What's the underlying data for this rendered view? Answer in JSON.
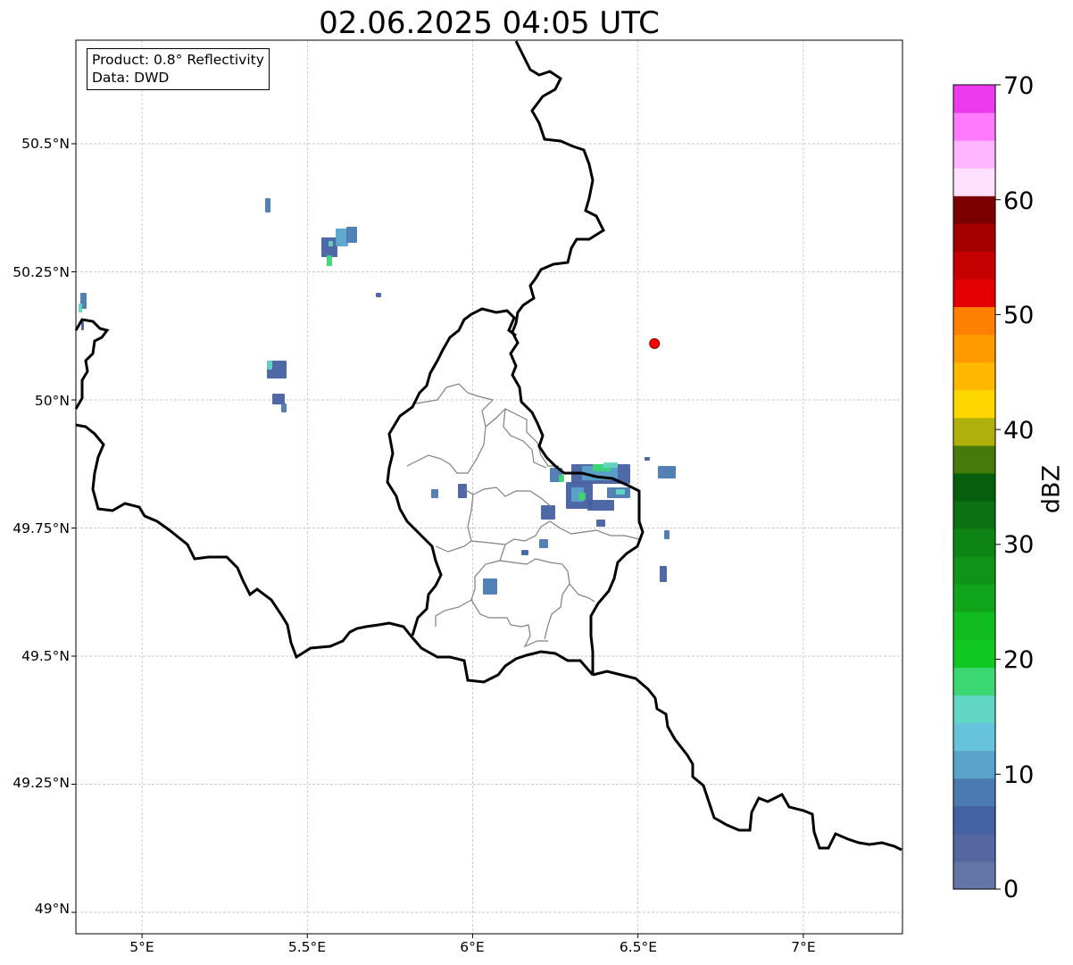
{
  "title": "02.06.2025 04:05 UTC",
  "info": {
    "product": "Product: 0.8° Reflectivity",
    "data": "Data: DWD"
  },
  "map": {
    "lon_range": [
      4.8,
      7.3
    ],
    "lat_range": [
      48.95,
      50.69
    ],
    "lat_ticks": [
      "50.5°N",
      "50.25°N",
      "50°N",
      "49.75°N",
      "49.5°N",
      "49.25°N",
      "49°N"
    ],
    "lon_ticks": [
      "5°E",
      "5.5°E",
      "6°E",
      "6.5°E",
      "7°E"
    ],
    "gridlines": true,
    "marker": {
      "label": "radar site",
      "lon": 6.55,
      "lat": 50.11,
      "color": "#ff0000"
    }
  },
  "colorbar": {
    "unit": "dBZ",
    "min": 0,
    "max": 70,
    "tick_labels": [
      "70",
      "60",
      "50",
      "40",
      "30",
      "20",
      "10",
      "0"
    ],
    "colors": [
      "#6375a7",
      "#5467a0",
      "#4461a1",
      "#4b7ab1",
      "#5aa2c9",
      "#67c3dc",
      "#62d6c4",
      "#3bd773",
      "#10c820",
      "#10bc20",
      "#10a51a",
      "#0e9417",
      "#0f8416",
      "#0a7212",
      "#075e0c",
      "#467a0b",
      "#afb10a",
      "#ffd700",
      "#ffb800",
      "#ff9a00",
      "#ff7f00",
      "#e40000",
      "#c50000",
      "#a50000",
      "#7d0000",
      "#ffe1ff",
      "#ffb5ff",
      "#ff7aff",
      "#ee3aee"
    ]
  }
}
